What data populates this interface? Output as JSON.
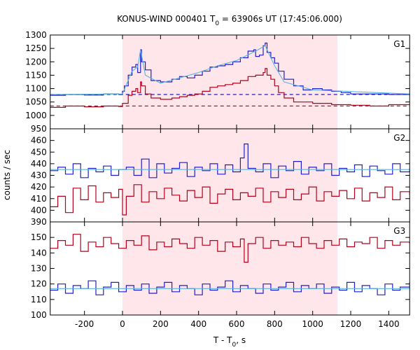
{
  "chart_data": {
    "type": "line",
    "title": {
      "prefix": "KONUS-WIND 000401 T",
      "sub": "0",
      "suffix": " = 63906s UT (17:45:06.000)"
    },
    "xlabel": {
      "prefix": "T - T",
      "sub": "0",
      "suffix": ", s"
    },
    "ylabel": "counts / sec",
    "xlim": [
      -380,
      1510
    ],
    "x_ticks": [
      {
        "value": -200,
        "label": "-200"
      },
      {
        "value": 0,
        "label": "0"
      },
      {
        "value": 200,
        "label": "200"
      },
      {
        "value": 400,
        "label": "400"
      },
      {
        "value": 600,
        "label": "600"
      },
      {
        "value": 800,
        "label": "800"
      },
      {
        "value": 1000,
        "label": "1000"
      },
      {
        "value": 1200,
        "label": "1200"
      },
      {
        "value": 1400,
        "label": "1400"
      }
    ],
    "highlight_interval": [
      0,
      1130
    ],
    "colors": {
      "highlight": "#ffe6ea",
      "blue": "#1f1fcc",
      "red": "#b3001b",
      "fit": "#5ab4e0"
    },
    "panels": [
      {
        "label": "G1",
        "ylim": [
          950,
          1300
        ],
        "y_ticks": [
          950,
          1000,
          1050,
          1100,
          1150,
          1200,
          1250,
          1300
        ],
        "backgrounds": [
          {
            "series": "blue",
            "value": 1078
          },
          {
            "series": "red",
            "value": 1035
          }
        ],
        "series": [
          {
            "color": "blue",
            "x": [
              -380,
              -300,
              -200,
              -100,
              -20,
              0,
              10,
              30,
              50,
              70,
              80,
              95,
              100,
              120,
              150,
              200,
              260,
              300,
              340,
              380,
              420,
              460,
              500,
              540,
              580,
              620,
              660,
              690,
              700,
              720,
              740,
              750,
              760,
              780,
              800,
              820,
              850,
              900,
              950,
              1000,
              1050,
              1100,
              1150,
              1200,
              1300,
              1400,
              1510
            ],
            "y": [
              1075,
              1078,
              1076,
              1080,
              1078,
              1090,
              1110,
              1150,
              1180,
              1190,
              1160,
              1245,
              1200,
              1170,
              1130,
              1125,
              1135,
              1145,
              1140,
              1150,
              1165,
              1180,
              1185,
              1190,
              1200,
              1215,
              1240,
              1245,
              1220,
              1225,
              1260,
              1270,
              1235,
              1215,
              1195,
              1165,
              1135,
              1110,
              1095,
              1100,
              1095,
              1090,
              1085,
              1080,
              1080,
              1078,
              1082
            ]
          },
          {
            "color": "red",
            "x": [
              -380,
              -300,
              -200,
              -100,
              -20,
              0,
              30,
              50,
              70,
              80,
              95,
              100,
              120,
              150,
              200,
              260,
              300,
              340,
              380,
              420,
              460,
              500,
              540,
              580,
              620,
              660,
              700,
              740,
              750,
              760,
              780,
              800,
              820,
              850,
              900,
              1000,
              1100,
              1200,
              1300,
              1400,
              1510
            ],
            "y": [
              1030,
              1035,
              1032,
              1035,
              1033,
              1045,
              1075,
              1090,
              1100,
              1085,
              1125,
              1110,
              1080,
              1065,
              1060,
              1065,
              1070,
              1075,
              1080,
              1090,
              1105,
              1110,
              1115,
              1120,
              1130,
              1145,
              1150,
              1160,
              1175,
              1150,
              1135,
              1110,
              1085,
              1065,
              1050,
              1045,
              1040,
              1038,
              1035,
              1040,
              1038
            ]
          },
          {
            "color": "fit",
            "x": [
              -380,
              0,
              50,
              80,
              95,
              120,
              200,
              300,
              400,
              500,
              600,
              700,
              750,
              800,
              850,
              1000,
              1510
            ],
            "y": [
              1078,
              1080,
              1165,
              1180,
              1245,
              1150,
              1120,
              1140,
              1160,
              1185,
              1205,
              1240,
              1260,
              1185,
              1125,
              1095,
              1080
            ]
          }
        ]
      },
      {
        "label": "G2",
        "ylim": [
          390,
          470
        ],
        "y_ticks": [
          390,
          400,
          410,
          420,
          430,
          440,
          450,
          460
        ],
        "backgrounds": [],
        "series": [
          {
            "color": "blue",
            "x": [
              -380,
              -340,
              -300,
              -260,
              -220,
              -180,
              -140,
              -100,
              -60,
              -20,
              20,
              60,
              100,
              140,
              180,
              220,
              260,
              300,
              340,
              380,
              420,
              460,
              500,
              540,
              580,
              620,
              640,
              660,
              700,
              740,
              780,
              820,
              860,
              900,
              940,
              980,
              1020,
              1060,
              1100,
              1140,
              1180,
              1220,
              1260,
              1300,
              1340,
              1380,
              1420,
              1460,
              1510
            ],
            "y": [
              434,
              437,
              431,
              440,
              428,
              436,
              433,
              438,
              430,
              435,
              437,
              430,
              444,
              428,
              440,
              432,
              436,
              441,
              429,
              437,
              434,
              440,
              431,
              439,
              433,
              445,
              457,
              436,
              433,
              440,
              428,
              438,
              434,
              442,
              431,
              437,
              434,
              440,
              430,
              436,
              433,
              439,
              429,
              438,
              434,
              431,
              440,
              433,
              436
            ]
          },
          {
            "color": "red",
            "x": [
              -380,
              -340,
              -300,
              -260,
              -220,
              -180,
              -140,
              -100,
              -60,
              -20,
              0,
              20,
              60,
              100,
              140,
              180,
              220,
              260,
              300,
              340,
              380,
              420,
              460,
              500,
              540,
              580,
              620,
              660,
              700,
              740,
              780,
              820,
              860,
              900,
              940,
              980,
              1020,
              1060,
              1100,
              1140,
              1180,
              1220,
              1260,
              1300,
              1340,
              1380,
              1420,
              1460,
              1510
            ],
            "y": [
              403,
              412,
              398,
              419,
              409,
              421,
              407,
              415,
              411,
              418,
              396,
              412,
              422,
              407,
              416,
              410,
              419,
              413,
              408,
              417,
              411,
              420,
              406,
              414,
              418,
              409,
              415,
              412,
              419,
              407,
              416,
              411,
              418,
              409,
              414,
              420,
              408,
              416,
              412,
              417,
              410,
              419,
              408,
              415,
              411,
              420,
              409,
              416,
              413
            ]
          },
          {
            "color": "fit",
            "x": [
              -380,
              1510
            ],
            "y": [
              435,
              435
            ]
          }
        ]
      },
      {
        "label": "G3",
        "ylim": [
          100,
          160
        ],
        "y_ticks": [
          100,
          110,
          120,
          130,
          140,
          150
        ],
        "backgrounds": [],
        "series": [
          {
            "color": "red",
            "x": [
              -380,
              -340,
              -300,
              -260,
              -220,
              -180,
              -140,
              -100,
              -60,
              -20,
              20,
              60,
              100,
              140,
              180,
              220,
              260,
              300,
              340,
              380,
              420,
              460,
              500,
              540,
              580,
              620,
              640,
              660,
              700,
              740,
              780,
              820,
              860,
              900,
              940,
              980,
              1020,
              1060,
              1100,
              1140,
              1180,
              1220,
              1260,
              1300,
              1340,
              1380,
              1420,
              1460,
              1510
            ],
            "y": [
              143,
              148,
              145,
              152,
              141,
              147,
              144,
              150,
              146,
              143,
              148,
              145,
              151,
              142,
              147,
              144,
              149,
              146,
              143,
              150,
              145,
              148,
              141,
              147,
              144,
              149,
              134,
              146,
              150,
              143,
              148,
              145,
              147,
              144,
              150,
              146,
              143,
              148,
              145,
              149,
              144,
              147,
              146,
              150,
              143,
              148,
              145,
              147,
              146
            ]
          },
          {
            "color": "blue",
            "x": [
              -380,
              -340,
              -300,
              -260,
              -220,
              -180,
              -140,
              -100,
              -60,
              -20,
              20,
              60,
              100,
              140,
              180,
              220,
              260,
              300,
              340,
              380,
              420,
              460,
              500,
              540,
              580,
              620,
              660,
              700,
              740,
              780,
              820,
              860,
              900,
              940,
              980,
              1020,
              1060,
              1100,
              1140,
              1180,
              1220,
              1260,
              1300,
              1340,
              1380,
              1420,
              1460,
              1510
            ],
            "y": [
              116,
              120,
              114,
              119,
              117,
              122,
              113,
              118,
              121,
              115,
              119,
              116,
              120,
              114,
              118,
              121,
              115,
              119,
              117,
              113,
              120,
              116,
              118,
              122,
              115,
              119,
              117,
              114,
              120,
              116,
              118,
              121,
              115,
              119,
              117,
              120,
              114,
              118,
              116,
              121,
              115,
              119,
              117,
              113,
              120,
              116,
              118,
              121
            ]
          },
          {
            "color": "fit",
            "x": [
              -380,
              1510
            ],
            "y": [
              117,
              117
            ]
          }
        ]
      }
    ]
  }
}
